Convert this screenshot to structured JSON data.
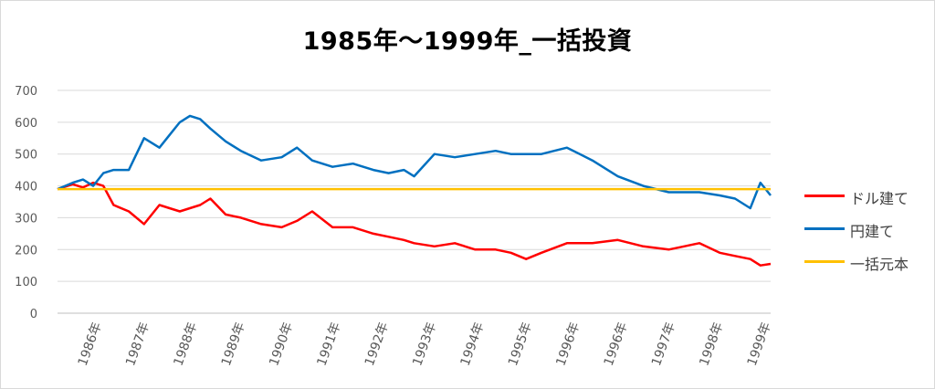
{
  "chart_data": {
    "type": "line",
    "title": "1985年～1999年_一括投資",
    "xlabel": "",
    "ylabel": "",
    "ylim": [
      0,
      700
    ],
    "yticks": [
      0,
      100,
      200,
      300,
      400,
      500,
      600,
      700
    ],
    "grid": true,
    "legend_position": "right",
    "x_tick_labels": [
      "1986年",
      "1987年",
      "1988年",
      "1989年",
      "1990年",
      "1991年",
      "1992年",
      "1993年",
      "1994年",
      "1995年",
      "1996年",
      "1996年",
      "1997年",
      "1998年",
      "1999年"
    ],
    "x": [
      0,
      0.3,
      0.5,
      0.7,
      0.9,
      1.1,
      1.4,
      1.7,
      2.0,
      2.2,
      2.4,
      2.6,
      2.8,
      3.0,
      3.3,
      3.6,
      4.0,
      4.4,
      4.7,
      5.0,
      5.4,
      5.8,
      6.2,
      6.5,
      6.8,
      7.0,
      7.4,
      7.8,
      8.2,
      8.6,
      8.9,
      9.2,
      9.5,
      10.0,
      10.5,
      11.0,
      11.5,
      12.0,
      12.3,
      12.6,
      13.0,
      13.3,
      13.6,
      13.8,
      14.0
    ],
    "series": [
      {
        "name": "ドル建て",
        "color": "#ff0000",
        "values": [
          390,
          405,
          395,
          410,
          400,
          340,
          320,
          280,
          340,
          330,
          320,
          330,
          340,
          360,
          310,
          300,
          280,
          270,
          290,
          320,
          270,
          270,
          250,
          240,
          230,
          220,
          210,
          220,
          200,
          200,
          190,
          170,
          190,
          220,
          220,
          230,
          210,
          200,
          210,
          220,
          190,
          180,
          170,
          150,
          155
        ]
      },
      {
        "name": "円建て",
        "color": "#0070c0",
        "values": [
          390,
          410,
          420,
          400,
          440,
          450,
          450,
          550,
          520,
          560,
          600,
          620,
          610,
          580,
          540,
          510,
          480,
          490,
          520,
          480,
          460,
          470,
          450,
          440,
          450,
          430,
          500,
          490,
          500,
          510,
          500,
          500,
          500,
          520,
          480,
          430,
          400,
          380,
          380,
          380,
          370,
          360,
          330,
          410,
          370
        ]
      },
      {
        "name": "一括元本",
        "color": "#ffc000",
        "values": [
          390,
          390,
          390,
          390,
          390,
          390,
          390,
          390,
          390,
          390,
          390,
          390,
          390,
          390,
          390,
          390,
          390,
          390,
          390,
          390,
          390,
          390,
          390,
          390,
          390,
          390,
          390,
          390,
          390,
          390,
          390,
          390,
          390,
          390,
          390,
          390,
          390,
          390,
          390,
          390,
          390,
          390,
          390,
          390,
          390
        ]
      }
    ]
  }
}
